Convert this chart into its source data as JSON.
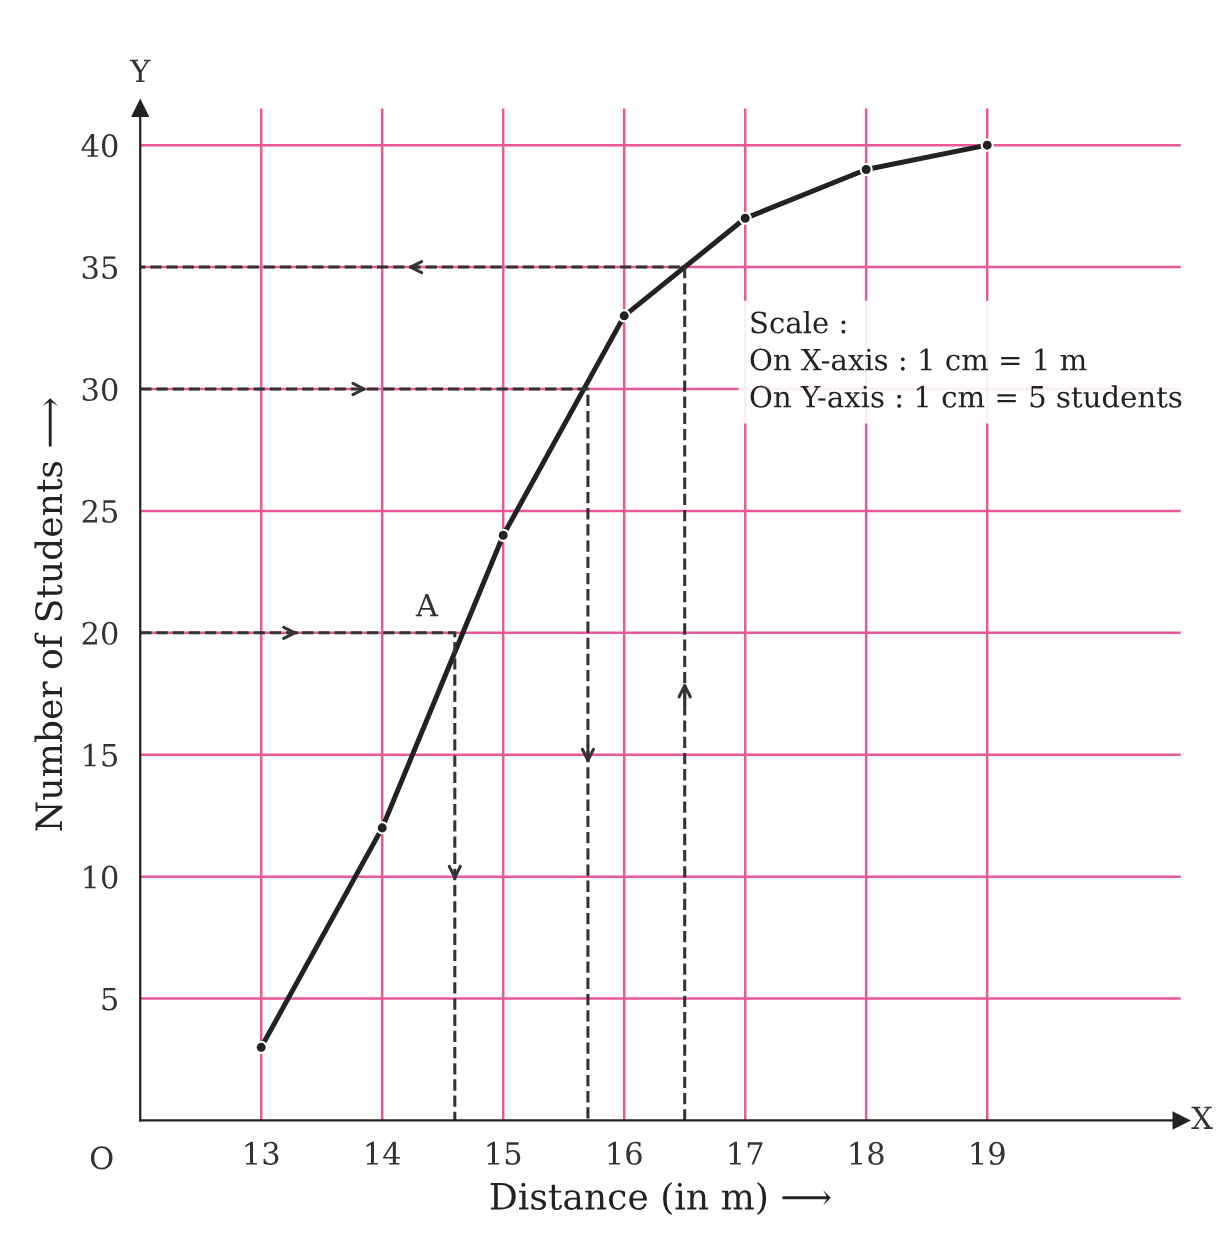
{
  "chart_data": {
    "type": "line",
    "xlabel": "Distance (in m) ⟶",
    "ylabel": "Number of Students ⟶",
    "xlim": [
      12,
      20.6
    ],
    "ylim": [
      0,
      41.5
    ],
    "xticks": [
      13,
      14,
      15,
      16,
      17,
      18,
      19
    ],
    "yticks": [
      5,
      10,
      15,
      20,
      25,
      30,
      35,
      40
    ],
    "grid": true,
    "legend": false,
    "series": [
      {
        "color": "#222222",
        "marker": "circle",
        "line_style": "solid",
        "x": [
          13,
          14,
          15,
          16,
          17,
          18,
          19
        ],
        "values": [
          3,
          12,
          24,
          33,
          37,
          39,
          40
        ]
      },
      {
        "color": "#333333",
        "marker": "none",
        "line_style": "dashed",
        "x": [
          12,
          14.6,
          14.6
        ],
        "values": [
          20,
          20,
          0
        ]
      },
      {
        "color": "#333333",
        "marker": "none",
        "line_style": "dashed",
        "x": [
          12,
          15.7,
          15.7
        ],
        "values": [
          30,
          30,
          0
        ]
      },
      {
        "color": "#333333",
        "marker": "none",
        "line_style": "dashed",
        "x": [
          16.5,
          16.5,
          12
        ],
        "values": [
          0,
          35,
          35
        ]
      }
    ],
    "annotations": [
      {
        "text": "A",
        "x": 14.6,
        "y": 20
      },
      "Scale :\nOn X-axis : 1 cm = 1 m\nOn Y-axis : 1 cm = 5 students",
      "Y",
      "X",
      "O"
    ]
  }
}
